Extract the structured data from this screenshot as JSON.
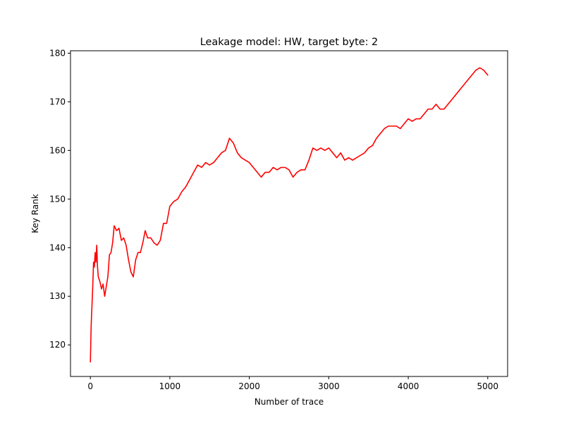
{
  "chart_data": {
    "type": "line",
    "title": "Leakage model: HW, target byte: 2",
    "xlabel": "Number of trace",
    "ylabel": "Key Rank",
    "xlim": [
      -250,
      5250
    ],
    "ylim": [
      113.5,
      180.5
    ],
    "xticks": [
      0,
      1000,
      2000,
      3000,
      4000,
      5000
    ],
    "yticks": [
      120,
      130,
      140,
      150,
      160,
      170,
      180
    ],
    "grid": false,
    "legend": "none",
    "series": [
      {
        "color": "#ff0000",
        "x": [
          0,
          10,
          20,
          30,
          40,
          50,
          60,
          70,
          80,
          90,
          100,
          120,
          140,
          160,
          180,
          200,
          220,
          240,
          260,
          280,
          300,
          330,
          360,
          390,
          420,
          450,
          480,
          510,
          540,
          570,
          600,
          630,
          660,
          690,
          720,
          760,
          800,
          840,
          880,
          920,
          960,
          1000,
          1050,
          1100,
          1150,
          1200,
          1250,
          1300,
          1350,
          1400,
          1450,
          1500,
          1550,
          1600,
          1650,
          1700,
          1750,
          1800,
          1850,
          1900,
          1950,
          2000,
          2050,
          2100,
          2150,
          2200,
          2250,
          2300,
          2350,
          2400,
          2450,
          2500,
          2550,
          2600,
          2650,
          2700,
          2750,
          2800,
          2850,
          2900,
          2950,
          3000,
          3050,
          3100,
          3150,
          3200,
          3250,
          3300,
          3350,
          3400,
          3450,
          3500,
          3550,
          3600,
          3650,
          3700,
          3750,
          3800,
          3850,
          3900,
          3950,
          4000,
          4050,
          4100,
          4150,
          4200,
          4250,
          4300,
          4350,
          4400,
          4450,
          4500,
          4550,
          4600,
          4650,
          4700,
          4750,
          4800,
          4850,
          4900,
          4950,
          5000
        ],
        "y": [
          116.5,
          124,
          128,
          132,
          137,
          136,
          139,
          137,
          140.5,
          136,
          134,
          133,
          131.5,
          132.5,
          130,
          132,
          134,
          138.5,
          139,
          141,
          144.5,
          143.5,
          144,
          141.5,
          142,
          140.5,
          137.5,
          135,
          134,
          137.5,
          139,
          139,
          141,
          143.5,
          142,
          142,
          141,
          140.5,
          141.5,
          145,
          145,
          148.5,
          149.5,
          150,
          151.5,
          152.5,
          154,
          155.5,
          157,
          156.5,
          157.5,
          157,
          157.5,
          158.5,
          159.5,
          160,
          162.5,
          161.5,
          159.5,
          158.5,
          158,
          157.5,
          156.5,
          155.5,
          154.5,
          155.5,
          155.5,
          156.5,
          156,
          156.5,
          156.5,
          156,
          154.5,
          155.5,
          156,
          156,
          158,
          160.5,
          160,
          160.5,
          160,
          160.5,
          159.5,
          158.5,
          159.5,
          158,
          158.5,
          158,
          158.5,
          159,
          159.5,
          160.5,
          161,
          162.5,
          163.5,
          164.5,
          165,
          165,
          165,
          164.5,
          165.5,
          166.5,
          166,
          166.5,
          166.5,
          167.5,
          168.5,
          168.5,
          169.5,
          168.5,
          168.5,
          169.5,
          170.5,
          171.5,
          172.5,
          173.5,
          174.5,
          175.5,
          176.5,
          177,
          176.5,
          175.5
        ]
      }
    ]
  }
}
